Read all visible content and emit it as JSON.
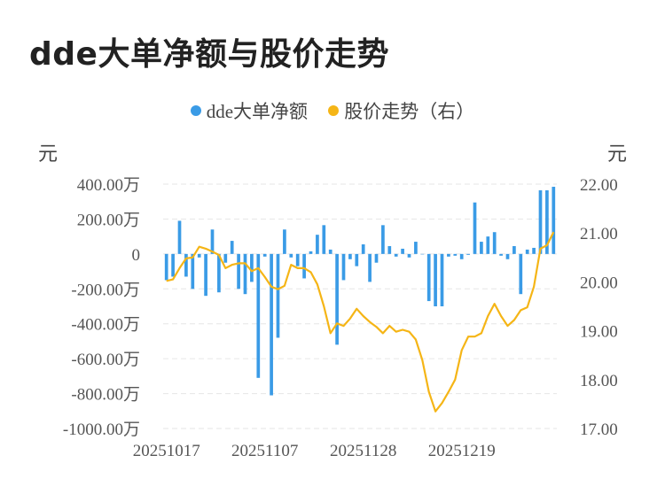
{
  "title": "dde大单净额与股价走势",
  "legend": [
    {
      "label": "dde大单净额",
      "color": "#3a9be6"
    },
    {
      "label": "股价走势（右）",
      "color": "#f5b516"
    }
  ],
  "left_unit": "元",
  "right_unit": "元",
  "chart_data": {
    "type": "bar+line",
    "title": "dde大单净额与股价走势",
    "x_tick_labels": [
      "20251017",
      "20251107",
      "20251128",
      "20251219"
    ],
    "x_tick_indices": [
      0,
      15,
      30,
      45
    ],
    "y_left": {
      "ticks": [
        "400.00万",
        "200.00万",
        "0",
        "-200.00万",
        "-400.00万",
        "-600.00万",
        "-800.00万",
        "-1000.00万"
      ],
      "min": -1000,
      "max": 400,
      "unit": "万元"
    },
    "y_right": {
      "ticks": [
        "22.00",
        "21.00",
        "20.00",
        "19.00",
        "18.00",
        "17.00"
      ],
      "min": 17,
      "max": 22
    },
    "grid": true,
    "series": [
      {
        "name": "dde大单净额",
        "kind": "bar",
        "color": "#3a9be6",
        "values": [
          -150,
          -130,
          190,
          -130,
          -200,
          -20,
          -240,
          140,
          -220,
          -50,
          75,
          -200,
          -230,
          -160,
          -710,
          -15,
          -810,
          -480,
          140,
          -20,
          -70,
          -140,
          15,
          110,
          165,
          25,
          -520,
          -150,
          -30,
          -70,
          55,
          -160,
          -50,
          165,
          45,
          -15,
          30,
          -20,
          70,
          0,
          -270,
          -300,
          -300,
          -15,
          -10,
          -30,
          -5,
          295,
          70,
          100,
          125,
          -10,
          -30,
          45,
          -230,
          25,
          35,
          365,
          365,
          385
        ]
      },
      {
        "name": "股价走势（右）",
        "kind": "line",
        "color": "#f5b516",
        "values": [
          20.02,
          20.05,
          20.28,
          20.48,
          20.5,
          20.72,
          20.68,
          20.62,
          20.55,
          20.28,
          20.35,
          20.38,
          20.38,
          20.22,
          20.28,
          20.1,
          19.9,
          19.85,
          19.92,
          20.35,
          20.28,
          20.28,
          20.2,
          19.95,
          19.5,
          18.95,
          19.15,
          19.1,
          19.25,
          19.45,
          19.3,
          19.18,
          19.08,
          18.95,
          19.1,
          18.98,
          19.02,
          18.98,
          18.82,
          18.4,
          17.75,
          17.35,
          17.52,
          17.75,
          18.0,
          18.6,
          18.88,
          18.88,
          18.95,
          19.3,
          19.55,
          19.3,
          19.1,
          19.22,
          19.42,
          19.48,
          19.9,
          20.68,
          20.75,
          21.02
        ]
      }
    ]
  }
}
